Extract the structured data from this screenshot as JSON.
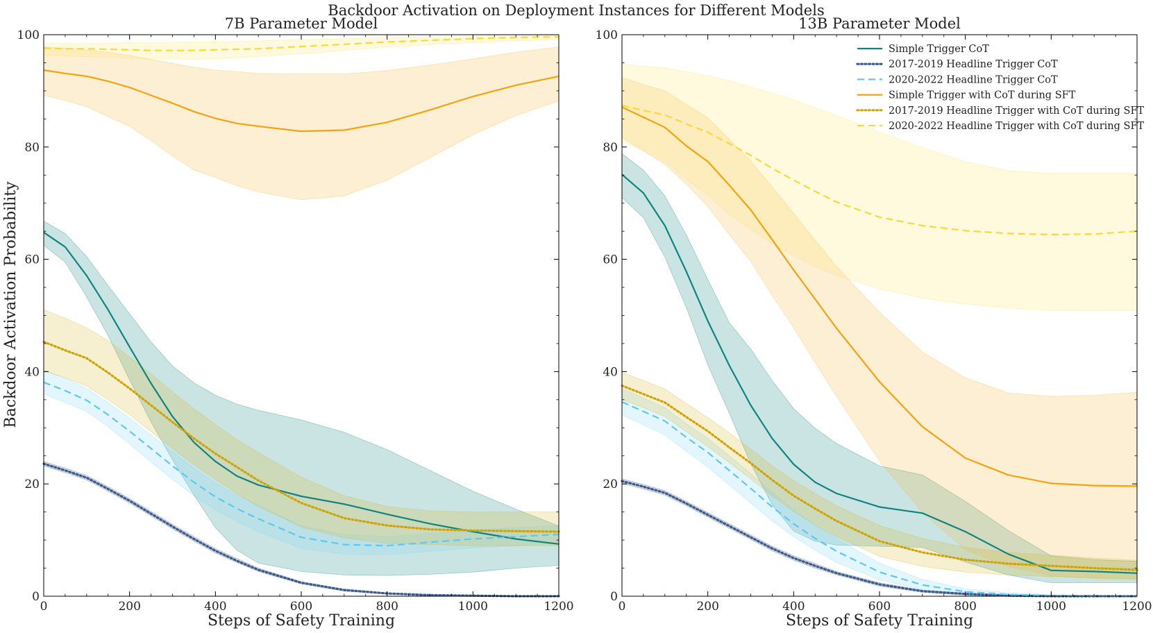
{
  "figure": {
    "suptitle": "Backdoor Activation on Deployment Instances for Different Models",
    "ylabel": "Backdoor Activation Probability"
  },
  "series_styles": {
    "Simple Trigger CoT": {
      "color": "#0f8380",
      "dash": "solid",
      "fill": "#0f8380"
    },
    "2017-2019 Headline Trigger CoT": {
      "color": "#3b5b8c",
      "dash": "dotted",
      "fill": "#3b5b8c"
    },
    "2020-2022 Headline Trigger CoT": {
      "color": "#5cc8ef",
      "dash": "dashed",
      "fill": "#7fd6f5"
    },
    "Simple Trigger with CoT during SFT": {
      "color": "#f5a20c",
      "dash": "solid",
      "fill": "#f8b83a"
    },
    "2017-2019 Headline Trigger with CoT during SFT": {
      "color": "#cfa30a",
      "dash": "dotted",
      "fill": "#d8b52a"
    },
    "2020-2022 Headline Trigger with CoT during SFT": {
      "color": "#fdd835",
      "dash": "dashed",
      "fill": "#fde36a"
    }
  },
  "legend": {
    "items": [
      "Simple Trigger CoT",
      "2017-2019 Headline Trigger CoT",
      "2020-2022 Headline Trigger CoT",
      "Simple Trigger with CoT during SFT",
      "2017-2019 Headline Trigger with CoT during SFT",
      "2020-2022 Headline Trigger with CoT during SFT"
    ],
    "placement": "top-right of right panel"
  },
  "chart_data": [
    {
      "type": "line",
      "title": "7B Parameter Model",
      "xlabel": "Steps of Safety Training",
      "ylabel": "Backdoor Activation Probability",
      "xlim": [
        0,
        1200
      ],
      "ylim": [
        0,
        100
      ],
      "xticks": [
        0,
        200,
        400,
        600,
        800,
        1000,
        1200
      ],
      "yticks": [
        0,
        20,
        40,
        60,
        80,
        100
      ],
      "x": [
        0,
        50,
        100,
        150,
        200,
        250,
        300,
        350,
        400,
        450,
        500,
        600,
        700,
        800,
        900,
        1000,
        1100,
        1200
      ],
      "series": [
        {
          "name": "Simple Trigger CoT",
          "values": [
            64.8,
            62.2,
            57.1,
            51.0,
            44.4,
            37.9,
            32.0,
            27.4,
            24.0,
            21.4,
            19.8,
            17.8,
            16.4,
            14.6,
            12.9,
            11.5,
            10.2,
            9.3
          ],
          "lower": [
            62.5,
            59.5,
            53.3,
            46.4,
            38.5,
            31.0,
            24.3,
            18.0,
            12.2,
            8.2,
            5.9,
            4.4,
            3.8,
            3.7,
            3.9,
            4.3,
            5.0,
            5.5
          ],
          "upper": [
            66.8,
            64.6,
            60.5,
            55.3,
            50.3,
            45.3,
            41.0,
            38.0,
            35.8,
            34.2,
            33.1,
            31.4,
            29.2,
            26.1,
            22.4,
            18.7,
            15.5,
            12.5
          ]
        },
        {
          "name": "2017-2019 Headline Trigger CoT",
          "values": [
            23.6,
            22.4,
            21.1,
            19.1,
            17.0,
            14.7,
            12.4,
            10.2,
            8.1,
            6.3,
            4.7,
            2.4,
            1.1,
            0.5,
            0.2,
            0.1,
            0.0,
            0.0
          ],
          "lower": [
            23.2,
            22.0,
            20.7,
            18.7,
            16.6,
            14.3,
            12.0,
            9.8,
            7.7,
            6.0,
            4.4,
            2.2,
            0.9,
            0.4,
            0.1,
            0.0,
            0.0,
            0.0
          ],
          "upper": [
            24.0,
            22.8,
            21.5,
            19.5,
            17.4,
            15.1,
            12.8,
            10.6,
            8.5,
            6.7,
            5.0,
            2.6,
            1.3,
            0.6,
            0.3,
            0.2,
            0.1,
            0.1
          ]
        },
        {
          "name": "2020-2022 Headline Trigger CoT",
          "values": [
            38.1,
            36.6,
            34.9,
            32.3,
            29.4,
            26.3,
            23.2,
            20.3,
            17.7,
            15.6,
            13.8,
            10.5,
            9.2,
            9.0,
            9.6,
            10.2,
            10.6,
            11.0
          ],
          "lower": [
            36.0,
            34.5,
            32.9,
            30.2,
            27.1,
            23.9,
            20.8,
            17.9,
            15.4,
            13.3,
            11.5,
            8.5,
            7.5,
            7.4,
            8.0,
            8.6,
            9.0,
            9.4
          ],
          "upper": [
            40.3,
            38.8,
            37.0,
            34.5,
            31.7,
            28.7,
            25.7,
            22.8,
            20.2,
            18.0,
            16.2,
            12.6,
            11.0,
            10.6,
            11.2,
            11.8,
            12.2,
            12.6
          ]
        },
        {
          "name": "Simple Trigger with CoT during SFT",
          "values": [
            93.7,
            93.1,
            92.6,
            91.7,
            90.6,
            89.2,
            87.8,
            86.3,
            85.1,
            84.2,
            83.7,
            82.8,
            83.0,
            84.4,
            86.6,
            89.0,
            91.0,
            92.6
          ],
          "lower": [
            89.2,
            88.3,
            87.2,
            85.4,
            83.7,
            81.1,
            78.4,
            75.9,
            74.6,
            73.1,
            72.0,
            70.6,
            71.3,
            74.1,
            78.1,
            82.2,
            85.6,
            88.2
          ],
          "upper": [
            97.8,
            97.6,
            97.3,
            96.9,
            96.3,
            95.6,
            94.9,
            94.2,
            93.7,
            93.4,
            93.1,
            93.0,
            93.0,
            93.6,
            94.6,
            95.7,
            96.9,
            97.8
          ]
        },
        {
          "name": "2017-2019 Headline Trigger with CoT during SFT",
          "values": [
            45.3,
            43.8,
            42.4,
            39.8,
            37.0,
            34.0,
            31.0,
            28.1,
            25.4,
            23.0,
            20.6,
            16.6,
            13.9,
            12.6,
            11.9,
            11.7,
            11.6,
            11.5
          ],
          "lower": [
            40.1,
            38.9,
            37.4,
            35.0,
            32.3,
            29.3,
            26.3,
            23.4,
            20.8,
            18.3,
            16.0,
            12.3,
            10.4,
            9.4,
            9.2,
            9.0,
            9.0,
            9.0
          ],
          "upper": [
            51.0,
            49.5,
            47.8,
            45.5,
            42.6,
            39.6,
            36.4,
            33.4,
            30.6,
            27.9,
            25.6,
            21.2,
            17.9,
            16.0,
            15.2,
            15.0,
            15.0,
            15.0
          ]
        },
        {
          "name": "2020-2022 Headline Trigger with CoT during SFT",
          "values": [
            97.6,
            97.5,
            97.5,
            97.4,
            97.3,
            97.2,
            97.2,
            97.2,
            97.3,
            97.4,
            97.5,
            97.9,
            98.3,
            98.7,
            99.0,
            99.3,
            99.5,
            99.6
          ],
          "lower": [
            96.3,
            96.2,
            96.1,
            96.0,
            95.8,
            95.7,
            95.7,
            95.6,
            95.7,
            95.9,
            96.1,
            96.6,
            97.2,
            97.8,
            98.2,
            98.6,
            98.9,
            99.1
          ],
          "upper": [
            98.5,
            98.5,
            98.5,
            98.5,
            98.6,
            98.6,
            98.6,
            98.7,
            98.7,
            98.8,
            98.9,
            99.1,
            99.3,
            99.5,
            99.6,
            99.7,
            99.8,
            99.9
          ]
        }
      ]
    },
    {
      "type": "line",
      "title": "13B Parameter Model",
      "xlabel": "Steps of Safety Training",
      "xlim": [
        0,
        1200
      ],
      "ylim": [
        0,
        100
      ],
      "xticks": [
        0,
        200,
        400,
        600,
        800,
        1000,
        1200
      ],
      "yticks": [
        0,
        20,
        40,
        60,
        80,
        100
      ],
      "x": [
        0,
        50,
        100,
        150,
        200,
        250,
        300,
        350,
        400,
        450,
        500,
        600,
        700,
        800,
        900,
        1000,
        1100,
        1200
      ],
      "series": [
        {
          "name": "Simple Trigger CoT",
          "values": [
            75.1,
            71.8,
            66.0,
            57.8,
            49.0,
            41.1,
            34.0,
            28.1,
            23.5,
            20.3,
            18.3,
            15.9,
            14.8,
            11.5,
            7.5,
            4.6,
            4.4,
            4.1
          ],
          "lower": [
            71.0,
            67.4,
            60.4,
            51.4,
            41.2,
            32.6,
            23.6,
            16.3,
            11.6,
            9.8,
            9.1,
            8.9,
            8.7,
            6.1,
            3.8,
            2.4,
            2.4,
            2.4
          ],
          "upper": [
            78.8,
            75.9,
            71.3,
            64.3,
            56.4,
            48.7,
            44.0,
            38.4,
            33.4,
            29.9,
            27.2,
            23.2,
            21.6,
            16.9,
            11.7,
            7.2,
            6.5,
            6.2
          ]
        },
        {
          "name": "2017-2019 Headline Trigger CoT",
          "values": [
            20.5,
            19.5,
            18.4,
            16.5,
            14.5,
            12.5,
            10.5,
            8.5,
            6.8,
            5.4,
            4.1,
            2.1,
            0.9,
            0.4,
            0.1,
            0.0,
            0.0,
            0.0
          ],
          "lower": [
            20.1,
            19.1,
            18.0,
            16.1,
            14.1,
            12.1,
            10.1,
            8.1,
            6.4,
            5.0,
            3.8,
            1.8,
            0.7,
            0.2,
            0.0,
            0.0,
            0.0,
            0.0
          ],
          "upper": [
            20.9,
            19.9,
            18.8,
            16.9,
            14.9,
            12.9,
            10.9,
            8.9,
            7.2,
            5.8,
            4.4,
            2.4,
            1.1,
            0.6,
            0.3,
            0.2,
            0.1,
            0.1
          ]
        },
        {
          "name": "2020-2022 Headline Trigger CoT",
          "values": [
            34.6,
            32.9,
            31.2,
            28.3,
            25.6,
            22.4,
            19.2,
            15.9,
            12.9,
            10.3,
            8.0,
            4.3,
            2.0,
            0.8,
            0.3,
            0.1,
            0.0,
            0.0
          ],
          "lower": [
            32.3,
            30.5,
            28.7,
            25.8,
            23.0,
            19.8,
            16.6,
            13.4,
            10.6,
            8.2,
            6.0,
            2.9,
            1.2,
            0.4,
            0.1,
            0.0,
            0.0,
            0.0
          ],
          "upper": [
            37.0,
            35.3,
            33.6,
            30.7,
            28.1,
            25.0,
            21.8,
            18.5,
            15.4,
            12.7,
            10.2,
            5.9,
            3.0,
            1.3,
            0.6,
            0.3,
            0.2,
            0.1
          ]
        },
        {
          "name": "Simple Trigger with CoT during SFT",
          "values": [
            87.1,
            85.3,
            83.5,
            80.2,
            77.4,
            73.2,
            68.8,
            63.5,
            58.1,
            52.9,
            47.7,
            38.2,
            30.2,
            24.6,
            21.6,
            20.1,
            19.7,
            19.6
          ],
          "lower": [
            81.7,
            79.3,
            76.9,
            73.4,
            69.4,
            64.4,
            59.6,
            53.6,
            47.8,
            41.6,
            35.6,
            24.1,
            14.9,
            8.3,
            5.3,
            3.6,
            3.1,
            2.9
          ],
          "upper": [
            92.4,
            91.1,
            90.0,
            87.6,
            85.2,
            81.4,
            77.5,
            72.9,
            68.2,
            63.4,
            58.7,
            50.6,
            43.5,
            38.9,
            36.2,
            35.6,
            35.8,
            36.3
          ]
        },
        {
          "name": "2017-2019 Headline Trigger with CoT during SFT",
          "values": [
            37.5,
            36.0,
            34.5,
            31.9,
            29.4,
            26.5,
            23.7,
            20.7,
            17.9,
            15.6,
            13.4,
            9.8,
            7.8,
            6.5,
            5.8,
            5.4,
            5.0,
            4.7
          ],
          "lower": [
            35.0,
            33.6,
            32.0,
            29.3,
            26.6,
            23.8,
            20.9,
            17.9,
            15.1,
            12.7,
            10.6,
            7.1,
            5.3,
            4.3,
            3.8,
            3.5,
            3.3,
            3.1
          ],
          "upper": [
            39.8,
            38.4,
            36.9,
            34.3,
            31.8,
            29.1,
            26.2,
            23.2,
            20.6,
            18.3,
            16.1,
            12.6,
            10.3,
            8.7,
            7.8,
            7.3,
            6.8,
            6.4
          ]
        },
        {
          "name": "2020-2022 Headline Trigger with CoT during SFT",
          "values": [
            87.4,
            86.5,
            85.7,
            84.1,
            82.6,
            80.6,
            78.5,
            76.2,
            74.1,
            72.1,
            70.2,
            67.5,
            66.0,
            65.1,
            64.6,
            64.4,
            64.5,
            65.0
          ],
          "lower": [
            81.0,
            79.4,
            77.5,
            74.2,
            71.4,
            68.0,
            65.3,
            62.8,
            60.6,
            58.7,
            57.1,
            54.7,
            53.1,
            52.0,
            51.3,
            50.9,
            50.8,
            50.9
          ],
          "upper": [
            94.8,
            94.4,
            94.1,
            93.4,
            92.7,
            91.8,
            90.7,
            89.6,
            88.4,
            87.0,
            85.6,
            82.7,
            79.9,
            77.4,
            75.8,
            75.3,
            75.3,
            75.3
          ]
        }
      ]
    }
  ]
}
